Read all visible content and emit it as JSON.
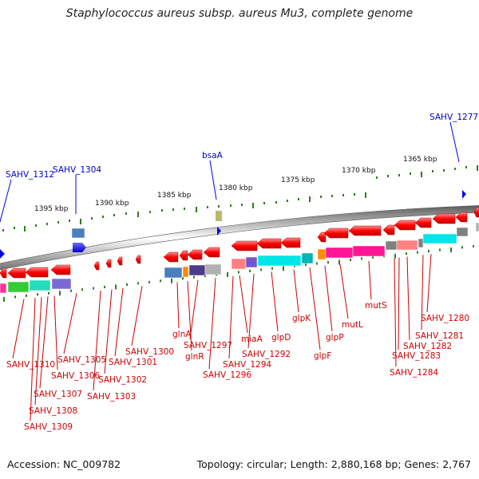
{
  "title": "Staphylococcus aureus subsp. aureus Mu3, complete genome",
  "accession": "Accession: NC_009782",
  "topology": "Topology: circular; Length: 2,880,168 bp; Genes: 2,767",
  "scale_labels": [
    {
      "text": "1395 kbp"
    },
    {
      "text": "1390 kbp"
    },
    {
      "text": "1385 kbp"
    },
    {
      "text": "1380 kbp"
    },
    {
      "text": "1375 kbp"
    },
    {
      "text": "1370 kbp"
    },
    {
      "text": "1365 kbp"
    }
  ],
  "upper_genes": [
    {
      "name": "SAHV_1312"
    },
    {
      "name": "SAHV_1304"
    },
    {
      "name": "bsaA"
    },
    {
      "name": "SAHV_1277"
    }
  ],
  "lower_genes": [
    {
      "name": "SAHV_1310"
    },
    {
      "name": "SAHV_1309"
    },
    {
      "name": "SAHV_1308"
    },
    {
      "name": "SAHV_1307"
    },
    {
      "name": "SAHV_1306"
    },
    {
      "name": "SAHV_1305"
    },
    {
      "name": "SAHV_1303"
    },
    {
      "name": "SAHV_1302"
    },
    {
      "name": "SAHV_1301"
    },
    {
      "name": "SAHV_1300"
    },
    {
      "name": "glnA"
    },
    {
      "name": "glnR"
    },
    {
      "name": "SAHV_1297"
    },
    {
      "name": "SAHV_1296"
    },
    {
      "name": "SAHV_1294"
    },
    {
      "name": "miaA"
    },
    {
      "name": "SAHV_1292"
    },
    {
      "name": "glpD"
    },
    {
      "name": "glpK"
    },
    {
      "name": "glpF"
    },
    {
      "name": "glpP"
    },
    {
      "name": "mutL"
    },
    {
      "name": "mutS"
    },
    {
      "name": "SAHV_1284"
    },
    {
      "name": "SAHV_1283"
    },
    {
      "name": "SAHV_1282"
    },
    {
      "name": "SAHV_1281"
    },
    {
      "name": "SAHV_1280"
    }
  ],
  "colors": {
    "backbone": "#888888",
    "tick": "#2e7d1e",
    "gene_red": "#ff1a1a",
    "gene_blue": "#0000ee",
    "label_red": "#cc0000",
    "label_blue": "#0000cc"
  }
}
